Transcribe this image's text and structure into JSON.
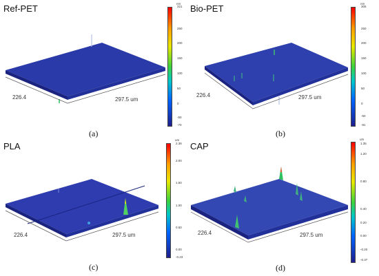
{
  "panels": {
    "a": {
      "title": "Ref-PET",
      "caption": "(a)",
      "y_label": "226.4",
      "x_label": "297.5 um",
      "colorbar": {
        "unit": "nm",
        "ticks": [
          "321",
          "250",
          "200",
          "150",
          "100",
          "50",
          "0",
          "-50",
          "-70"
        ]
      }
    },
    "b": {
      "title": "Bio-PET",
      "caption": "(b)",
      "y_label": "226.4",
      "x_label": "297.5 um",
      "colorbar": {
        "unit": "nm",
        "ticks": [
          "306",
          "250",
          "200",
          "150",
          "100",
          "50",
          "0",
          "-50",
          "-91"
        ]
      }
    },
    "c": {
      "title": "PLA",
      "caption": "(c)",
      "y_label": "226.4",
      "x_label": "297.5 um",
      "colorbar": {
        "unit": "um",
        "ticks": [
          "2.36",
          "2.00",
          "1.50",
          "1.00",
          "0.50",
          "0.00",
          "-0.23"
        ]
      }
    },
    "d": {
      "title": "CAP",
      "caption": "(d)",
      "y_label": "226.4",
      "x_label": "297.5 um",
      "colorbar": {
        "unit": "um",
        "ticks": [
          "1.35",
          "1.20",
          "0.80",
          "0.40",
          "0.20",
          "0.00",
          "-0.20",
          "-0.37"
        ]
      }
    }
  },
  "colors": {
    "surface_base": "#2a3aa8",
    "surface_light": "#4a63d0",
    "surface_dark": "#1a2380"
  }
}
